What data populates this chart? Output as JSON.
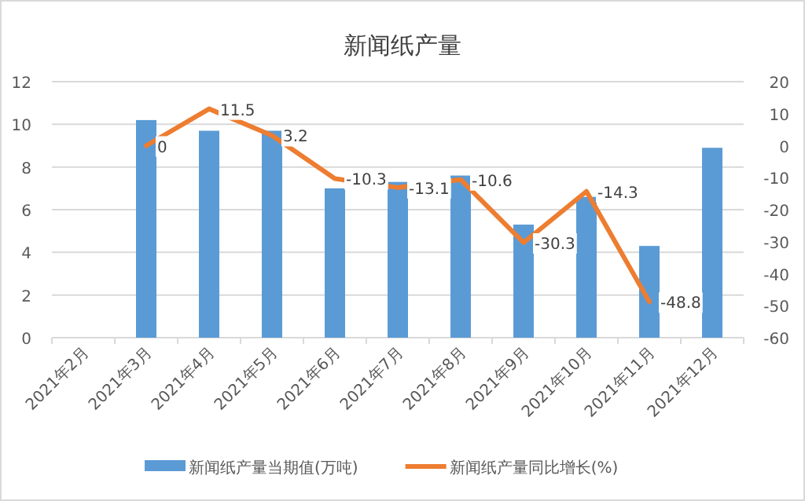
{
  "chart_data": {
    "type": "bar",
    "title": "新闻纸产量",
    "categories": [
      "2021年2月",
      "2021年3月",
      "2021年4月",
      "2021年5月",
      "2021年6月",
      "2021年7月",
      "2021年8月",
      "2021年9月",
      "2021年10月",
      "2021年11月",
      "2021年12月"
    ],
    "series": [
      {
        "name": "新闻纸产量当期值(万吨)",
        "color": "#5b9bd5",
        "values": [
          null,
          10.2,
          9.7,
          9.7,
          7.0,
          7.3,
          7.6,
          5.3,
          6.6,
          4.3,
          8.9
        ]
      },
      {
        "name": "新闻纸产量同比增长(%)",
        "type": "line",
        "axis": "y2",
        "color": "#ed7d31",
        "values": [
          null,
          0,
          11.5,
          3.2,
          -10.3,
          -13.1,
          -10.6,
          -30.3,
          -14.3,
          -48.8,
          null
        ],
        "value_labels": [
          null,
          "0",
          "11.5",
          "3.2",
          "-10.3",
          "-13.1",
          "-10.6",
          "-30.3",
          "-14.3",
          "-48.8",
          null
        ]
      }
    ],
    "ylim": [
      0,
      12
    ],
    "yticks": [
      0,
      2,
      4,
      6,
      8,
      10,
      12
    ],
    "y2lim": [
      -60,
      20
    ],
    "y2ticks": [
      -60,
      -50,
      -40,
      -30,
      -20,
      -10,
      0,
      10,
      20
    ],
    "grid": "y",
    "legend": "bottom",
    "marker": "none"
  }
}
